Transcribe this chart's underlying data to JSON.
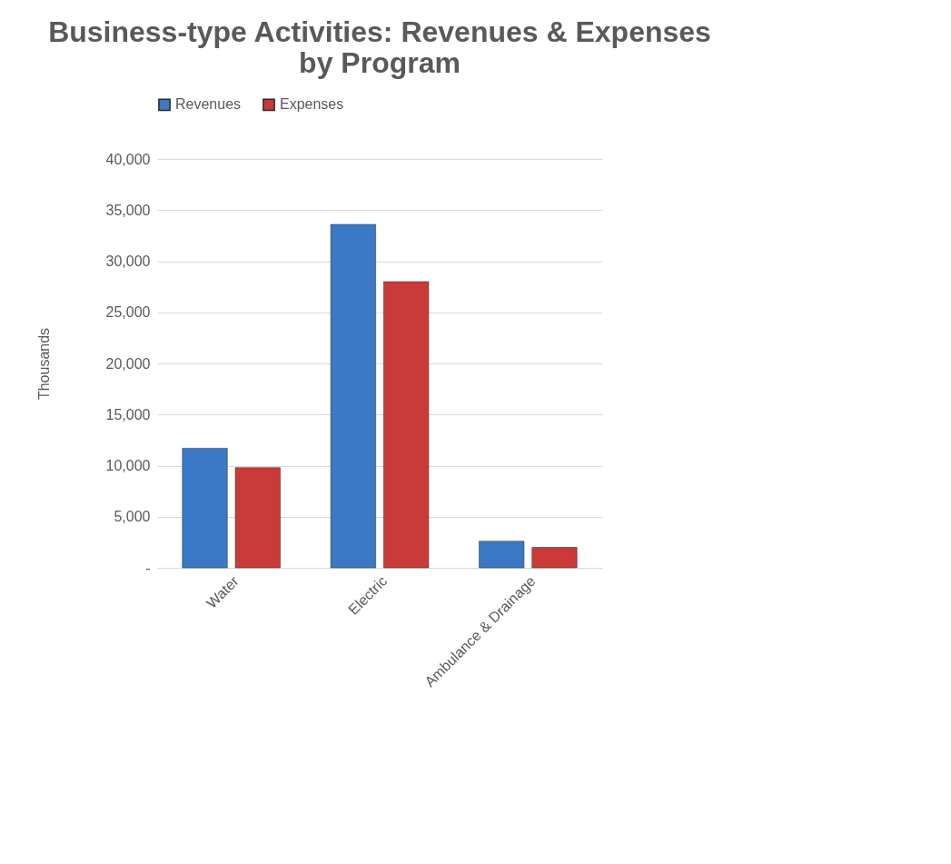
{
  "chart_data": {
    "type": "bar",
    "title": "Business-type Activities: Revenues & Expenses by Program",
    "ylabel": "Thousands",
    "categories": [
      "Water",
      "Electric",
      "Ambulance & Drainage"
    ],
    "series": [
      {
        "name": "Revenues",
        "color": "#3b78c6",
        "values": [
          11700,
          33600,
          2600
        ]
      },
      {
        "name": "Expenses",
        "color": "#c93a38",
        "values": [
          9800,
          28000,
          2000
        ]
      }
    ],
    "ylim": [
      0,
      40000
    ],
    "yticks": [
      {
        "value": 0,
        "label": "-"
      },
      {
        "value": 5000,
        "label": "5,000"
      },
      {
        "value": 10000,
        "label": "10,000"
      },
      {
        "value": 15000,
        "label": "15,000"
      },
      {
        "value": 20000,
        "label": "20,000"
      },
      {
        "value": 25000,
        "label": "25,000"
      },
      {
        "value": 30000,
        "label": "30,000"
      },
      {
        "value": 35000,
        "label": "35,000"
      },
      {
        "value": 40000,
        "label": "40,000"
      }
    ],
    "grid": "y",
    "legend": "top"
  }
}
